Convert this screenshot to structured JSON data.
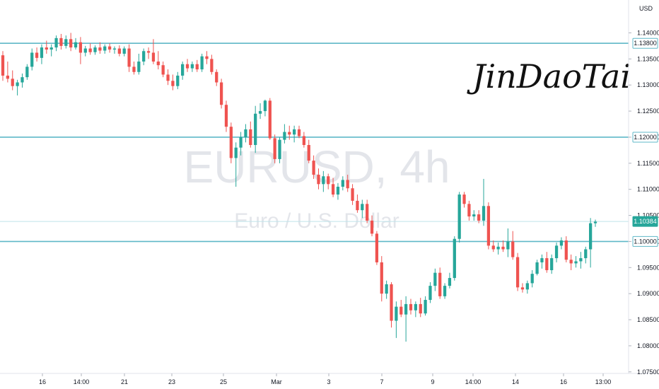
{
  "chart_data": {
    "type": "candlestick",
    "watermark_symbol": "EURUSD, 4h",
    "watermark_name": "Euro / U.S. Dollar",
    "currency": "USD",
    "signature": "JinDaoTai",
    "y_ticks": [
      "1.14000",
      "1.13500",
      "1.13000",
      "1.12500",
      "1.12000",
      "1.11500",
      "1.11000",
      "1.10500",
      "1.10000",
      "1.09500",
      "1.09000",
      "1.08500",
      "1.08000",
      "1.07500"
    ],
    "x_ticks": [
      "16",
      "14:00",
      "21",
      "23",
      "25",
      "Mar",
      "3",
      "7",
      "9",
      "14:00",
      "14",
      "16",
      "13:00"
    ],
    "ylim": [
      1.0747,
      1.1463
    ],
    "levels": [
      1.138,
      1.12,
      1.1
    ],
    "level_labels": [
      "1.13800",
      "1.12000",
      "1.10000"
    ],
    "last_price": 1.10384,
    "last_price_label": "1.10384",
    "up_color": "#26a69a",
    "down_color": "#ef5350",
    "level_color": "#5fb8c8",
    "ohlc": [
      [
        1.1357,
        1.1365,
        1.1308,
        1.1318
      ],
      [
        1.1318,
        1.1345,
        1.1305,
        1.1312
      ],
      [
        1.1312,
        1.1328,
        1.129,
        1.1298
      ],
      [
        1.1298,
        1.131,
        1.128,
        1.1305
      ],
      [
        1.1305,
        1.1322,
        1.1295,
        1.1315
      ],
      [
        1.1315,
        1.134,
        1.131,
        1.1335
      ],
      [
        1.1335,
        1.137,
        1.1328,
        1.1362
      ],
      [
        1.1362,
        1.1372,
        1.1345,
        1.1352
      ],
      [
        1.1352,
        1.1378,
        1.134,
        1.1372
      ],
      [
        1.1372,
        1.1385,
        1.136,
        1.1368
      ],
      [
        1.1368,
        1.1378,
        1.1355,
        1.1372
      ],
      [
        1.1372,
        1.1395,
        1.1365,
        1.139
      ],
      [
        1.139,
        1.1398,
        1.1368,
        1.1375
      ],
      [
        1.1375,
        1.1395,
        1.137,
        1.1388
      ],
      [
        1.1388,
        1.14,
        1.1365,
        1.1372
      ],
      [
        1.1372,
        1.139,
        1.1368,
        1.1382
      ],
      [
        1.1382,
        1.1392,
        1.134,
        1.1362
      ],
      [
        1.1362,
        1.1375,
        1.1355,
        1.137
      ],
      [
        1.137,
        1.138,
        1.1358,
        1.1363
      ],
      [
        1.1363,
        1.1376,
        1.1358,
        1.1372
      ],
      [
        1.1372,
        1.1382,
        1.136,
        1.1366
      ],
      [
        1.1366,
        1.1378,
        1.136,
        1.1374
      ],
      [
        1.1374,
        1.138,
        1.1362,
        1.1368
      ],
      [
        1.1368,
        1.1374,
        1.136,
        1.137
      ],
      [
        1.137,
        1.1376,
        1.1355,
        1.136
      ],
      [
        1.136,
        1.1374,
        1.1355,
        1.137
      ],
      [
        1.137,
        1.1378,
        1.1325,
        1.1335
      ],
      [
        1.1335,
        1.1345,
        1.132,
        1.1325
      ],
      [
        1.1325,
        1.136,
        1.132,
        1.1345
      ],
      [
        1.1345,
        1.137,
        1.1338,
        1.1365
      ],
      [
        1.1365,
        1.1372,
        1.135,
        1.1362
      ],
      [
        1.1362,
        1.1388,
        1.134,
        1.1345
      ],
      [
        1.1345,
        1.1365,
        1.133,
        1.1338
      ],
      [
        1.1338,
        1.1345,
        1.1315,
        1.132
      ],
      [
        1.132,
        1.133,
        1.13,
        1.1308
      ],
      [
        1.1308,
        1.132,
        1.129,
        1.1298
      ],
      [
        1.1298,
        1.1325,
        1.1292,
        1.1318
      ],
      [
        1.1318,
        1.1345,
        1.131,
        1.134
      ],
      [
        1.134,
        1.135,
        1.1325,
        1.1332
      ],
      [
        1.1332,
        1.1345,
        1.1325,
        1.134
      ],
      [
        1.134,
        1.1348,
        1.1325,
        1.133
      ],
      [
        1.133,
        1.136,
        1.1325,
        1.1355
      ],
      [
        1.1355,
        1.1365,
        1.134,
        1.135
      ],
      [
        1.135,
        1.1358,
        1.132,
        1.1325
      ],
      [
        1.1325,
        1.133,
        1.1298,
        1.1305
      ],
      [
        1.1305,
        1.1312,
        1.1255,
        1.1262
      ],
      [
        1.1262,
        1.127,
        1.121,
        1.122
      ],
      [
        1.122,
        1.1228,
        1.115,
        1.116
      ],
      [
        1.116,
        1.119,
        1.1105,
        1.118
      ],
      [
        1.118,
        1.121,
        1.1165,
        1.12
      ],
      [
        1.12,
        1.1225,
        1.119,
        1.1215
      ],
      [
        1.1215,
        1.123,
        1.118,
        1.1185
      ],
      [
        1.1185,
        1.126,
        1.117,
        1.1245
      ],
      [
        1.1245,
        1.1265,
        1.1235,
        1.125
      ],
      [
        1.125,
        1.1272,
        1.124,
        1.127
      ],
      [
        1.127,
        1.1275,
        1.1195,
        1.1198
      ],
      [
        1.1198,
        1.1205,
        1.115,
        1.1158
      ],
      [
        1.1158,
        1.12,
        1.115,
        1.1195
      ],
      [
        1.1195,
        1.1225,
        1.1188,
        1.121
      ],
      [
        1.121,
        1.1222,
        1.1195,
        1.1205
      ],
      [
        1.1205,
        1.1222,
        1.119,
        1.1215
      ],
      [
        1.1215,
        1.1222,
        1.1198,
        1.1202
      ],
      [
        1.1202,
        1.121,
        1.118,
        1.1185
      ],
      [
        1.1185,
        1.1195,
        1.115,
        1.1155
      ],
      [
        1.1155,
        1.1165,
        1.112,
        1.1128
      ],
      [
        1.1128,
        1.114,
        1.11,
        1.111
      ],
      [
        1.111,
        1.1135,
        1.1095,
        1.1125
      ],
      [
        1.1125,
        1.113,
        1.11,
        1.111
      ],
      [
        1.111,
        1.1122,
        1.1085,
        1.109
      ],
      [
        1.109,
        1.1112,
        1.108,
        1.1105
      ],
      [
        1.1105,
        1.1125,
        1.1098,
        1.1118
      ],
      [
        1.1118,
        1.1128,
        1.1095,
        1.1102
      ],
      [
        1.1102,
        1.111,
        1.107,
        1.1078
      ],
      [
        1.1078,
        1.109,
        1.1055,
        1.106
      ],
      [
        1.106,
        1.108,
        1.1045,
        1.1072
      ],
      [
        1.1072,
        1.108,
        1.1035,
        1.104
      ],
      [
        1.104,
        1.105,
        1.101,
        1.1015
      ],
      [
        1.1015,
        1.102,
        1.0955,
        1.096
      ],
      [
        1.096,
        1.0972,
        1.0885,
        1.09
      ],
      [
        1.09,
        1.0925,
        1.089,
        1.0918
      ],
      [
        1.0918,
        1.0922,
        1.0835,
        1.0848
      ],
      [
        1.0848,
        1.0885,
        1.0815,
        1.0875
      ],
      [
        1.0875,
        1.0888,
        1.0855,
        1.086
      ],
      [
        1.086,
        1.0895,
        1.0808,
        1.088
      ],
      [
        1.088,
        1.089,
        1.086,
        1.0868
      ],
      [
        1.0868,
        1.0885,
        1.0855,
        1.088
      ],
      [
        1.088,
        1.0892,
        1.0855,
        1.0862
      ],
      [
        1.0862,
        1.0895,
        1.0858,
        1.0888
      ],
      [
        1.0888,
        1.0922,
        1.0882,
        1.0915
      ],
      [
        1.0915,
        1.0948,
        1.0905,
        1.094
      ],
      [
        1.094,
        1.095,
        1.089,
        1.0895
      ],
      [
        1.0895,
        1.092,
        1.089,
        1.0915
      ],
      [
        1.0915,
        1.094,
        1.091,
        1.093
      ],
      [
        1.093,
        1.101,
        1.0925,
        1.1005
      ],
      [
        1.1005,
        1.1095,
        1.0998,
        1.109
      ],
      [
        1.109,
        1.1095,
        1.1065,
        1.1072
      ],
      [
        1.1072,
        1.1078,
        1.104,
        1.1048
      ],
      [
        1.1048,
        1.106,
        1.104,
        1.1052
      ],
      [
        1.1052,
        1.106,
        1.1035,
        1.104
      ],
      [
        1.104,
        1.112,
        1.103,
        1.1068
      ],
      [
        1.1068,
        1.1075,
        1.0985,
        1.0992
      ],
      [
        1.0992,
        1.1002,
        1.098,
        1.0985
      ],
      [
        1.0985,
        1.0998,
        1.0975,
        1.099
      ],
      [
        1.099,
        1.1002,
        1.098,
        1.0985
      ],
      [
        1.0985,
        1.1025,
        1.097,
        1.1
      ],
      [
        1.1,
        1.102,
        1.0965,
        1.097
      ],
      [
        1.097,
        1.0978,
        1.0905,
        1.0912
      ],
      [
        1.0912,
        1.092,
        1.0902,
        1.0908
      ],
      [
        1.0908,
        1.0925,
        1.09,
        1.092
      ],
      [
        1.092,
        1.0945,
        1.0912,
        1.0938
      ],
      [
        1.0938,
        1.0965,
        1.0935,
        1.096
      ],
      [
        1.096,
        1.0975,
        1.0948,
        1.0968
      ],
      [
        1.0968,
        1.098,
        1.094,
        1.0945
      ],
      [
        1.0945,
        1.0975,
        1.0938,
        1.0968
      ],
      [
        1.0968,
        1.0998,
        1.096,
        1.0992
      ],
      [
        1.0992,
        1.1008,
        1.0985,
        1.1002
      ],
      [
        1.1002,
        1.101,
        1.096,
        1.0965
      ],
      [
        1.0965,
        1.0975,
        1.0945,
        1.0958
      ],
      [
        1.0958,
        1.0972,
        1.095,
        1.0962
      ],
      [
        1.0962,
        1.098,
        1.0948,
        1.0968
      ],
      [
        1.0968,
        1.099,
        1.0958,
        1.0985
      ],
      [
        1.0985,
        1.1045,
        1.095,
        1.1035
      ],
      [
        1.1035,
        1.1042,
        1.1028,
        1.1038
      ]
    ]
  }
}
